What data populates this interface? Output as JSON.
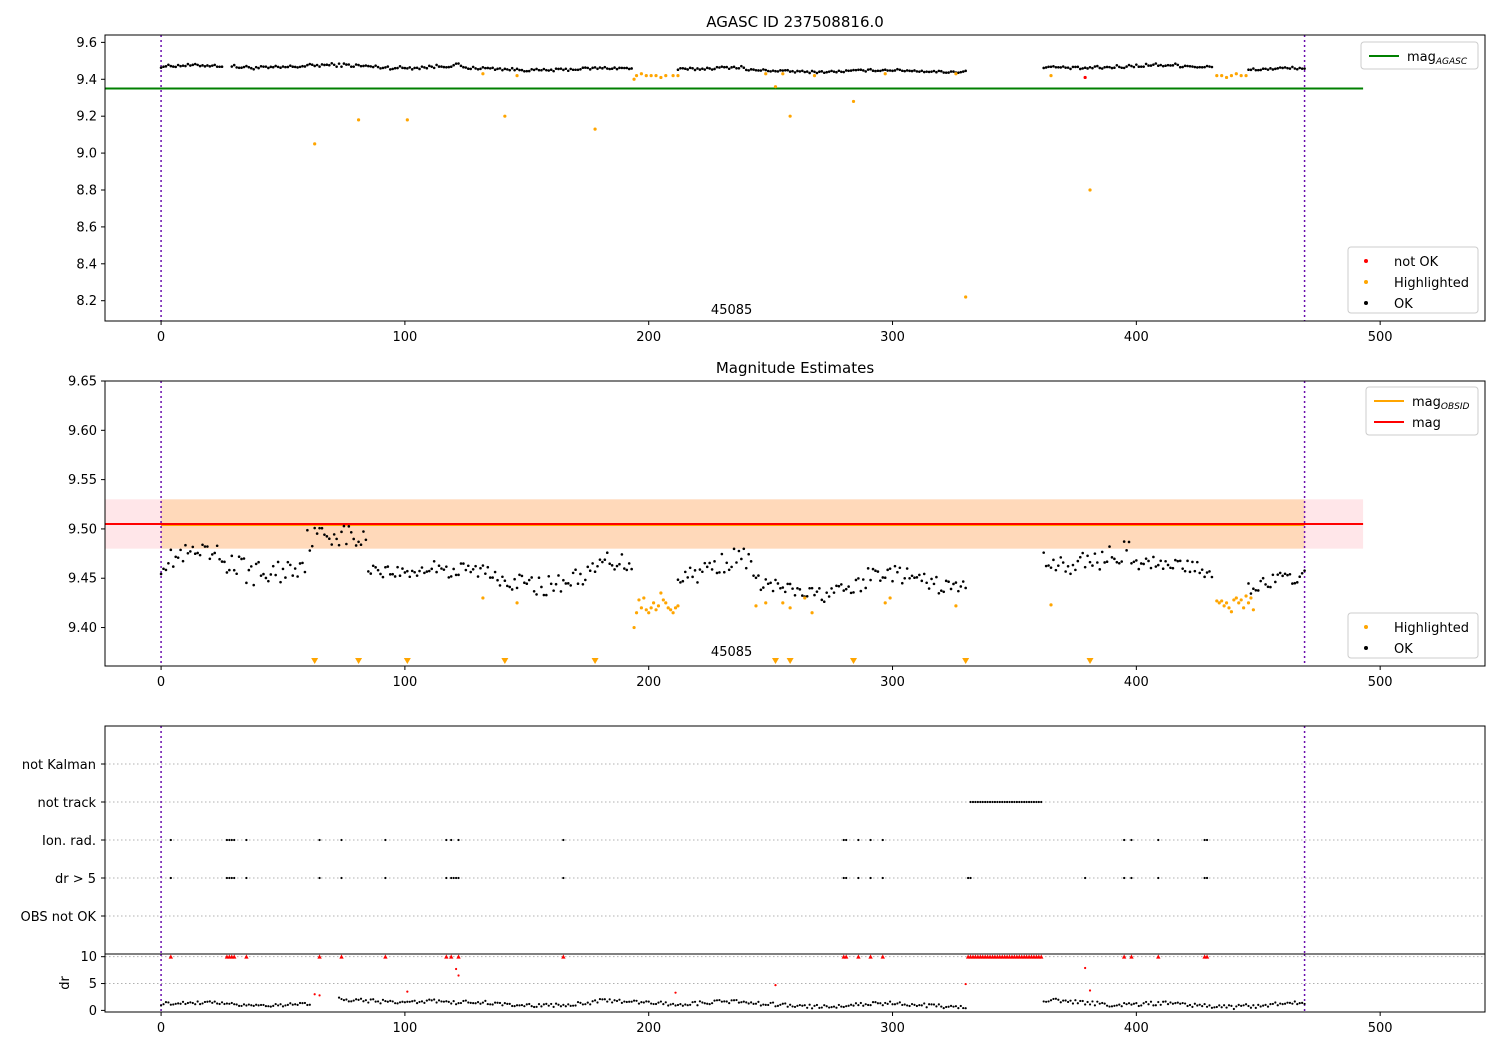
{
  "chart_data": [
    {
      "type": "scatter",
      "title": "AGASC ID 237508816.0",
      "xlabel": "",
      "ylabel": "",
      "xlim": [
        -23,
        543
      ],
      "ylim": [
        8.09,
        9.64
      ],
      "x_ticks": [
        "0",
        "100",
        "200",
        "300",
        "400",
        "500"
      ],
      "y_ticks": [
        "8.2",
        "8.4",
        "8.6",
        "8.8",
        "9.0",
        "9.2",
        "9.4",
        "9.6"
      ],
      "vertical_lines": [
        0,
        469
      ],
      "reference_line": {
        "name": "mag_AGASC",
        "y": 9.35,
        "x_range": [
          -23,
          493
        ],
        "color": "#008000"
      },
      "annotation": {
        "text": "45085",
        "x": 234,
        "y": 8.15
      },
      "legend_upper": {
        "position": "top-right",
        "entries": [
          {
            "label": "mag",
            "sub": "AGASC",
            "color": "#008000"
          }
        ]
      },
      "legend_lower": {
        "position": "bottom-right",
        "entries": [
          {
            "label": "not OK",
            "color": "#ff0000"
          },
          {
            "label": "Highlighted",
            "color": "#ffa500"
          },
          {
            "label": "OK",
            "color": "#000000"
          }
        ]
      },
      "series": [
        {
          "name": "OK",
          "color": "#000000",
          "segments": [
            {
              "x0": 0,
              "x1": 26,
              "center": 9.47,
              "amp": 0.012
            },
            {
              "x0": 29,
              "x1": 124,
              "center": 9.47,
              "amp": 0.016
            },
            {
              "x0": 124,
              "x1": 194,
              "center": 9.455,
              "amp": 0.012
            },
            {
              "x0": 212,
              "x1": 240,
              "center": 9.46,
              "amp": 0.012
            },
            {
              "x0": 240,
              "x1": 331,
              "center": 9.445,
              "amp": 0.01
            },
            {
              "x0": 362,
              "x1": 380,
              "center": 9.465,
              "amp": 0.012
            },
            {
              "x0": 380,
              "x1": 432,
              "center": 9.47,
              "amp": 0.016
            },
            {
              "x0": 446,
              "x1": 470,
              "center": 9.455,
              "amp": 0.012
            }
          ]
        },
        {
          "name": "Highlighted",
          "color": "#ffa500",
          "points": [
            [
              63,
              9.05
            ],
            [
              81,
              9.18
            ],
            [
              101,
              9.18
            ],
            [
              141,
              9.2
            ],
            [
              178,
              9.13
            ],
            [
              258,
              9.2
            ],
            [
              284,
              9.28
            ],
            [
              330,
              8.22
            ],
            [
              381,
              8.8
            ],
            [
              132,
              9.43
            ],
            [
              146,
              9.42
            ],
            [
              194,
              9.4
            ],
            [
              195,
              9.42
            ],
            [
              197,
              9.43
            ],
            [
              199,
              9.42
            ],
            [
              201,
              9.42
            ],
            [
              203,
              9.42
            ],
            [
              205,
              9.41
            ],
            [
              207,
              9.42
            ],
            [
              210,
              9.42
            ],
            [
              212,
              9.42
            ],
            [
              248,
              9.43
            ],
            [
              252,
              9.36
            ],
            [
              255,
              9.43
            ],
            [
              268,
              9.42
            ],
            [
              297,
              9.43
            ],
            [
              326,
              9.43
            ],
            [
              365,
              9.42
            ],
            [
              433,
              9.42
            ],
            [
              435,
              9.42
            ],
            [
              437,
              9.41
            ],
            [
              439,
              9.42
            ],
            [
              441,
              9.43
            ],
            [
              443,
              9.42
            ],
            [
              445,
              9.42
            ]
          ]
        },
        {
          "name": "not OK",
          "color": "#ff0000",
          "points": [
            [
              379,
              9.41
            ]
          ]
        }
      ]
    },
    {
      "type": "scatter",
      "title": "Magnitude Estimates",
      "xlabel": "",
      "ylabel": "",
      "xlim": [
        -23,
        543
      ],
      "ylim": [
        9.361,
        9.65
      ],
      "x_ticks": [
        "0",
        "100",
        "200",
        "300",
        "400",
        "500"
      ],
      "y_ticks": [
        "9.40",
        "9.45",
        "9.50",
        "9.55",
        "9.60",
        "9.65"
      ],
      "vertical_lines": [
        0,
        469
      ],
      "mag_line": {
        "name": "mag",
        "y": 9.505,
        "x_range": [
          -23,
          493
        ],
        "color": "#ff0000"
      },
      "mag_band": {
        "y0": 9.48,
        "y1": 9.53,
        "x_range": [
          -23,
          493
        ],
        "color": "#ffb6c1"
      },
      "mag_obsid_band": {
        "y0": 9.48,
        "y1": 9.53,
        "x_range": [
          0,
          469
        ],
        "color": "#ffa500"
      },
      "mag_obsid_line": {
        "name": "mag_OBSID",
        "y": 9.504,
        "x_range": [
          0,
          469
        ],
        "color": "#ffa500"
      },
      "annotation": {
        "text": "45085",
        "x": 234,
        "y": 9.37
      },
      "legend_upper": {
        "position": "top-right",
        "entries": [
          {
            "label": "mag",
            "sub": "OBSID",
            "color": "#ffa500"
          },
          {
            "label": "mag",
            "sub": "",
            "color": "#ff0000"
          }
        ]
      },
      "legend_lower": {
        "position": "bottom-right",
        "entries": [
          {
            "label": "Highlighted",
            "color": "#ffa500"
          },
          {
            "label": "OK",
            "color": "#000000"
          }
        ]
      },
      "outlier_markers_x": [
        63,
        81,
        101,
        141,
        178,
        252,
        258,
        284,
        330,
        381
      ],
      "series": [
        {
          "name": "OK",
          "color": "#000000",
          "segments": [
            {
              "x0": 0,
              "x1": 22,
              "center": 9.465,
              "amp": 0.018
            },
            {
              "x0": 22,
              "x1": 60,
              "center": 9.465,
              "amp": 0.022
            },
            {
              "x0": 60,
              "x1": 85,
              "center": 9.485,
              "amp": 0.02
            },
            {
              "x0": 85,
              "x1": 118,
              "center": 9.462,
              "amp": 0.012
            },
            {
              "x0": 118,
              "x1": 180,
              "center": 9.45,
              "amp": 0.016
            },
            {
              "x0": 180,
              "x1": 194,
              "center": 9.46,
              "amp": 0.016
            },
            {
              "x0": 212,
              "x1": 243,
              "center": 9.462,
              "amp": 0.018
            },
            {
              "x0": 243,
              "x1": 290,
              "center": 9.44,
              "amp": 0.013
            },
            {
              "x0": 290,
              "x1": 331,
              "center": 9.448,
              "amp": 0.014
            },
            {
              "x0": 362,
              "x1": 377,
              "center": 9.465,
              "amp": 0.015
            },
            {
              "x0": 377,
              "x1": 398,
              "center": 9.478,
              "amp": 0.018
            },
            {
              "x0": 398,
              "x1": 432,
              "center": 9.46,
              "amp": 0.012
            },
            {
              "x0": 446,
              "x1": 470,
              "center": 9.445,
              "amp": 0.012
            }
          ]
        },
        {
          "name": "Highlighted",
          "color": "#ffa500",
          "points": [
            [
              132,
              9.43
            ],
            [
              146,
              9.425
            ],
            [
              194,
              9.4
            ],
            [
              195,
              9.415
            ],
            [
              196,
              9.428
            ],
            [
              197,
              9.42
            ],
            [
              198,
              9.43
            ],
            [
              199,
              9.418
            ],
            [
              200,
              9.415
            ],
            [
              201,
              9.42
            ],
            [
              202,
              9.425
            ],
            [
              203,
              9.418
            ],
            [
              204,
              9.422
            ],
            [
              205,
              9.435
            ],
            [
              206,
              9.428
            ],
            [
              207,
              9.425
            ],
            [
              208,
              9.42
            ],
            [
              209,
              9.418
            ],
            [
              210,
              9.415
            ],
            [
              211,
              9.42
            ],
            [
              212,
              9.422
            ],
            [
              244,
              9.422
            ],
            [
              248,
              9.425
            ],
            [
              255,
              9.425
            ],
            [
              258,
              9.42
            ],
            [
              264,
              9.43
            ],
            [
              267,
              9.415
            ],
            [
              297,
              9.425
            ],
            [
              299,
              9.43
            ],
            [
              326,
              9.422
            ],
            [
              365,
              9.423
            ],
            [
              433,
              9.427
            ],
            [
              434,
              9.425
            ],
            [
              435,
              9.427
            ],
            [
              436,
              9.422
            ],
            [
              437,
              9.425
            ],
            [
              438,
              9.42
            ],
            [
              439,
              9.416
            ],
            [
              440,
              9.428
            ],
            [
              441,
              9.43
            ],
            [
              442,
              9.425
            ],
            [
              443,
              9.428
            ],
            [
              444,
              9.42
            ],
            [
              445,
              9.432
            ],
            [
              446,
              9.425
            ],
            [
              447,
              9.43
            ],
            [
              448,
              9.418
            ]
          ]
        }
      ]
    },
    {
      "type": "scatter",
      "title": "",
      "xlabel": "",
      "ylabel": "",
      "xlim": [
        -23,
        543
      ],
      "categories": [
        "not Kalman",
        "not track",
        "Ion. rad.",
        "dr > 5",
        "OBS not OK"
      ],
      "vertical_lines": [
        0,
        469
      ],
      "flag_points": {
        "not track": {
          "range": [
            332,
            361
          ],
          "step": 1
        },
        "Ion. rad.": [
          4,
          27,
          28,
          29,
          30,
          35,
          65,
          74,
          92,
          117,
          119,
          122,
          165,
          280,
          281,
          286,
          291,
          296,
          395,
          398,
          409,
          428,
          429
        ],
        "dr > 5": [
          4,
          27,
          28,
          29,
          30,
          35,
          65,
          74,
          92,
          117,
          119,
          120,
          121,
          122,
          165,
          280,
          281,
          286,
          291,
          296,
          331,
          332,
          379,
          395,
          398,
          409,
          428,
          429
        ],
        "OBS not OK": []
      }
    },
    {
      "type": "scatter",
      "title": "",
      "xlabel": "",
      "ylabel": "dr",
      "xlim": [
        -23,
        543
      ],
      "ylim": [
        -0.3,
        10.5
      ],
      "x_ticks": [
        "0",
        "100",
        "200",
        "300",
        "400",
        "500"
      ],
      "y_ticks": [
        "0",
        "5",
        "10"
      ],
      "vertical_lines": [
        0,
        469
      ],
      "series": [
        {
          "name": "OK",
          "color": "#000000",
          "segments": [
            {
              "x0": 0,
              "x1": 62,
              "center": 1.2,
              "amp": 0.5
            },
            {
              "x0": 73,
              "x1": 118,
              "center": 1.8,
              "amp": 0.6
            },
            {
              "x0": 118,
              "x1": 178,
              "center": 1.2,
              "amp": 0.6
            },
            {
              "x0": 178,
              "x1": 240,
              "center": 1.5,
              "amp": 0.6
            },
            {
              "x0": 240,
              "x1": 331,
              "center": 1.0,
              "amp": 0.6
            },
            {
              "x0": 362,
              "x1": 388,
              "center": 1.8,
              "amp": 0.8
            },
            {
              "x0": 388,
              "x1": 470,
              "center": 1.0,
              "amp": 0.7
            }
          ]
        },
        {
          "name": "not OK",
          "color": "#ff0000",
          "points": [
            [
              63,
              3.0
            ],
            [
              65,
              2.8
            ],
            [
              101,
              3.5
            ],
            [
              121,
              7.7
            ],
            [
              122,
              6.5
            ],
            [
              211,
              3.3
            ],
            [
              252,
              4.7
            ],
            [
              330,
              4.9
            ],
            [
              379,
              7.9
            ],
            [
              381,
              3.7
            ]
          ]
        },
        {
          "name": "not OK (clipped)",
          "color": "#ff0000",
          "marker": "triangle",
          "y": 10,
          "points_x": [
            4,
            27,
            28,
            29,
            30,
            35,
            65,
            74,
            92,
            117,
            119,
            122,
            165,
            280,
            281,
            286,
            291,
            296,
            395,
            398,
            409,
            428,
            429
          ],
          "range": [
            331,
            361
          ]
        }
      ]
    }
  ]
}
